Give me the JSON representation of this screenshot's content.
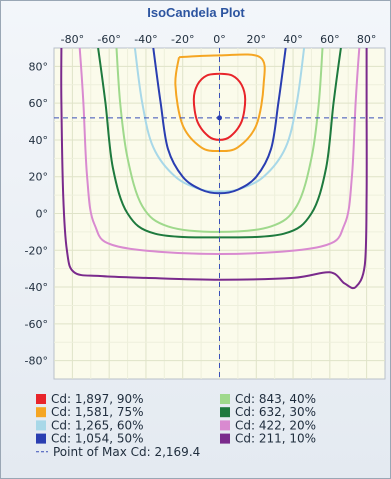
{
  "chart_data": {
    "type": "line",
    "title": "IsoCandela Plot",
    "x_ticks": [
      "-80°",
      "-60°",
      "-40°",
      "-20°",
      "0°",
      "20°",
      "40°",
      "60°",
      "80°"
    ],
    "y_ticks": [
      "80°",
      "60°",
      "40°",
      "20°",
      "0°",
      "-20°",
      "-40°",
      "-60°",
      "-80°"
    ],
    "xlim": [
      -90,
      90
    ],
    "ylim": [
      -90,
      90
    ],
    "grid": true,
    "point_of_max": {
      "label": "Point of Max Cd: 2,169.4",
      "x": 0,
      "y": 52
    },
    "series": [
      {
        "name": "Cd: 1,897, 90%",
        "color": "#e8242a",
        "points": [
          [
            0,
            76
          ],
          [
            7,
            75
          ],
          [
            12,
            70
          ],
          [
            14,
            62
          ],
          [
            12,
            50
          ],
          [
            6,
            42
          ],
          [
            0,
            40
          ],
          [
            -6,
            42
          ],
          [
            -12,
            50
          ],
          [
            -14,
            62
          ],
          [
            -12,
            70
          ],
          [
            -7,
            75
          ],
          [
            0,
            76
          ]
        ]
      },
      {
        "name": "Cd: 1,581, 75%",
        "color": "#f5a623",
        "points": [
          [
            -22,
            85
          ],
          [
            0,
            86
          ],
          [
            22,
            85
          ],
          [
            24,
            70
          ],
          [
            20,
            48
          ],
          [
            10,
            36
          ],
          [
            0,
            34
          ],
          [
            -10,
            36
          ],
          [
            -20,
            48
          ],
          [
            -24,
            70
          ],
          [
            -22,
            85
          ]
        ]
      },
      {
        "name": "Cd: 1,265, 60%",
        "color": "#a8d8e8",
        "points": [
          [
            -46,
            90
          ],
          [
            -42,
            60
          ],
          [
            -36,
            36
          ],
          [
            -24,
            20
          ],
          [
            -10,
            13
          ],
          [
            0,
            12
          ],
          [
            10,
            13
          ],
          [
            24,
            20
          ],
          [
            36,
            36
          ],
          [
            42,
            60
          ],
          [
            46,
            90
          ]
        ]
      },
      {
        "name": "Cd: 1,054, 50%",
        "color": "#2a3eb1",
        "points": [
          [
            -36,
            90
          ],
          [
            -32,
            60
          ],
          [
            -28,
            35
          ],
          [
            -20,
            20
          ],
          [
            -10,
            13
          ],
          [
            0,
            11
          ],
          [
            10,
            13
          ],
          [
            20,
            20
          ],
          [
            28,
            35
          ],
          [
            32,
            60
          ],
          [
            36,
            90
          ]
        ]
      },
      {
        "name": "Cd: 843, 40%",
        "color": "#9fd98c",
        "points": [
          [
            -56,
            90
          ],
          [
            -54,
            60
          ],
          [
            -50,
            30
          ],
          [
            -42,
            4
          ],
          [
            -28,
            -7
          ],
          [
            0,
            -10
          ],
          [
            28,
            -7
          ],
          [
            42,
            4
          ],
          [
            50,
            30
          ],
          [
            54,
            60
          ],
          [
            56,
            90
          ]
        ]
      },
      {
        "name": "Cd: 632, 30%",
        "color": "#1e7a3e",
        "points": [
          [
            -66,
            90
          ],
          [
            -62,
            60
          ],
          [
            -58,
            25
          ],
          [
            -50,
            0
          ],
          [
            -35,
            -11
          ],
          [
            0,
            -13
          ],
          [
            35,
            -11
          ],
          [
            50,
            0
          ],
          [
            58,
            25
          ],
          [
            62,
            60
          ],
          [
            66,
            90
          ]
        ]
      },
      {
        "name": "Cd: 422, 20%",
        "color": "#d98ad0",
        "points": [
          [
            -76,
            90
          ],
          [
            -74,
            60
          ],
          [
            -72,
            20
          ],
          [
            -68,
            -6
          ],
          [
            -55,
            -18
          ],
          [
            0,
            -22
          ],
          [
            55,
            -18
          ],
          [
            68,
            -6
          ],
          [
            72,
            20
          ],
          [
            74,
            60
          ],
          [
            76,
            90
          ]
        ]
      },
      {
        "name": "Cd: 211, 10%",
        "color": "#7a2a8c",
        "points": [
          [
            -86,
            90
          ],
          [
            -86,
            60
          ],
          [
            -85,
            10
          ],
          [
            -83,
            -20
          ],
          [
            -79,
            -32
          ],
          [
            -65,
            -34
          ],
          [
            -40,
            -35
          ],
          [
            0,
            -36
          ],
          [
            40,
            -35
          ],
          [
            60,
            -32
          ],
          [
            68,
            -38
          ],
          [
            74,
            -40
          ],
          [
            79,
            -28
          ],
          [
            80,
            10
          ],
          [
            80,
            60
          ],
          [
            80,
            90
          ]
        ]
      }
    ],
    "reference_line_legend": "Point of Max Cd: 2,169.4"
  }
}
